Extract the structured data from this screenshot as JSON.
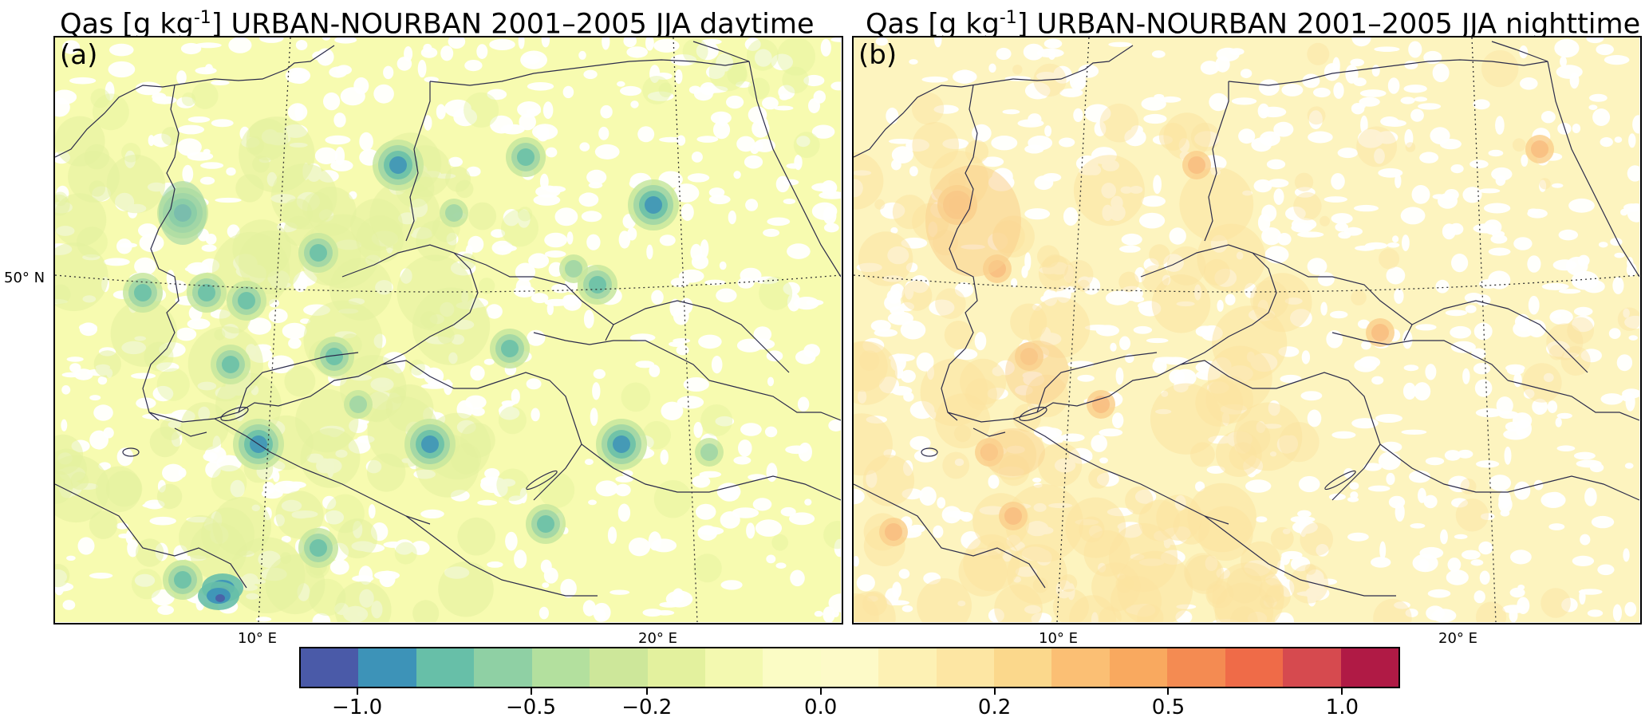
{
  "panels": [
    {
      "title_main": "Qas [g kg",
      "title_sup": "-1",
      "title_rest": "] URBAN-NOURBAN 2001–2005 JJA daytime",
      "label": "(a)",
      "field_sign": "negative",
      "base_color": "#f7fbb0",
      "spot_colors": [
        "#e3f19e",
        "#c7e69d",
        "#9ed5a6",
        "#67bfa8",
        "#3d93b8",
        "#4a63a8"
      ]
    },
    {
      "title_main": "Qas [g kg",
      "title_sup": "-1",
      "title_rest": "] URBAN-NOURBAN 2001–2005 JJA nighttime",
      "label": "(b)",
      "field_sign": "positive",
      "base_color": "#fdf4bf",
      "spot_colors": [
        "#fbe3a0",
        "#fad08d",
        "#f8bd80"
      ]
    }
  ],
  "axes": {
    "lat_label": "50° N",
    "lon_labels_a": [
      "10° E",
      "20° E"
    ],
    "lon_labels_b": [
      "10° E",
      "20° E"
    ]
  },
  "colorbar": {
    "colors": [
      "#4a5aa8",
      "#3d93b8",
      "#67bfa8",
      "#8fd0a4",
      "#b3e09e",
      "#cde79a",
      "#e3f19e",
      "#f3f9b0",
      "#fbfcc5",
      "#fdfac8",
      "#fdf1b4",
      "#fde6a3",
      "#fbd88c",
      "#fbbf74",
      "#f9a95f",
      "#f48b52",
      "#ef6b48",
      "#d64a4f",
      "#b01a45"
    ],
    "ticks": [
      "−1.0",
      "−0.5",
      "−0.2",
      "0.0",
      "0.2",
      "0.5",
      "1.0"
    ],
    "tick_boundary_index": [
      1,
      4,
      6,
      9,
      12,
      15,
      18
    ]
  }
}
